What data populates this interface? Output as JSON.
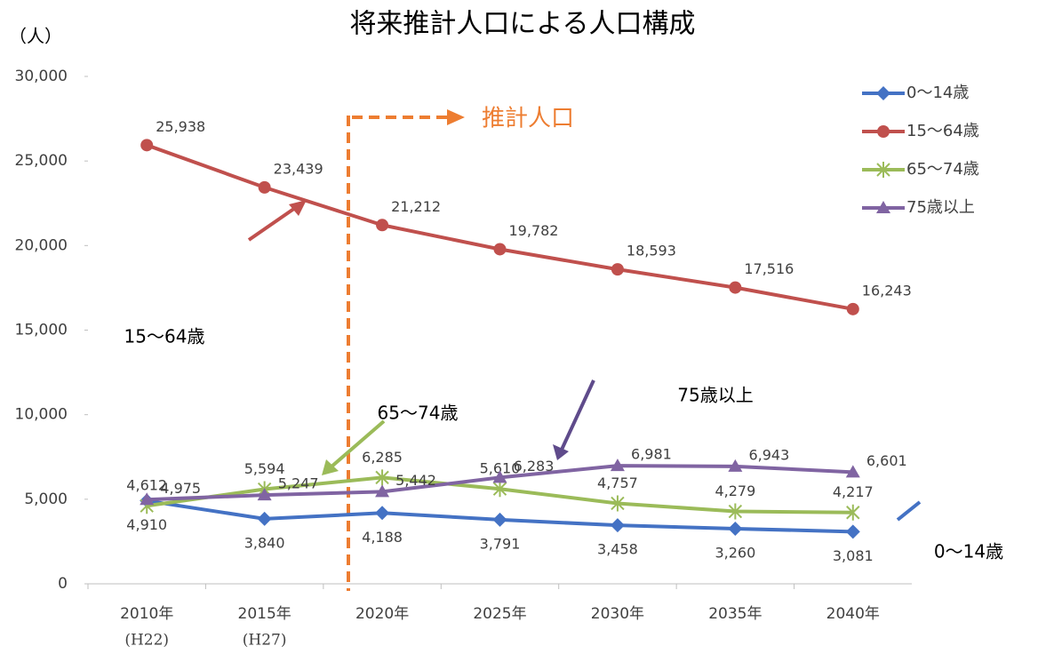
{
  "chart_data": {
    "type": "line",
    "title": "将来推計人口による人口構成",
    "y_label": "（人）",
    "categories": [
      "2010年",
      "2015年",
      "2020年",
      "2025年",
      "2030年",
      "2035年",
      "2040年"
    ],
    "category_sublabels": [
      "(H22)",
      "(H27)",
      null,
      null,
      null,
      null,
      null
    ],
    "ylim": [
      0,
      30000
    ],
    "yticks": [
      0,
      {
        "value": 5000,
        "label": "5,000"
      },
      {
        "value": 10000,
        "label": "10,000"
      },
      {
        "value": 15000,
        "label": "15,000"
      },
      {
        "value": 20000,
        "label": "20,000"
      },
      {
        "value": 25000,
        "label": "25,000"
      },
      {
        "value": 30000,
        "label": "30,000"
      }
    ],
    "legend_position": "upper right",
    "series": [
      {
        "name": "0〜14歳",
        "color": "#4472c4",
        "marker": "diamond",
        "values": [
          4910,
          3840,
          4188,
          3791,
          3458,
          3260,
          3081
        ],
        "value_labels": [
          "4,910",
          "3,840",
          "4,188",
          "3,791",
          "3,458",
          "3,260",
          "3,081"
        ]
      },
      {
        "name": "15〜64歳",
        "color": "#c0504d",
        "marker": "circle",
        "values": [
          25938,
          23439,
          21212,
          19782,
          18593,
          17516,
          16243
        ],
        "value_labels": [
          "25,938",
          "23,439",
          "21,212",
          "19,782",
          "18,593",
          "17,516",
          "16,243"
        ]
      },
      {
        "name": "65〜74歳",
        "color": "#9bbb59",
        "marker": "asterisk",
        "values": [
          4612,
          5594,
          6285,
          5610,
          4757,
          4279,
          4217
        ],
        "value_labels": [
          "4,612",
          "5,594",
          "6,285",
          "5,610",
          "4,757",
          "4,279",
          "4,217"
        ]
      },
      {
        "name": "75歳以上",
        "color": "#8064a2",
        "marker": "triangle",
        "values": [
          4975,
          5247,
          5442,
          6283,
          6981,
          6943,
          6601
        ],
        "value_labels": [
          "4,975",
          "5,247",
          "5,442",
          "6,283",
          "6,981",
          "6,943",
          "6,601"
        ]
      }
    ],
    "annotations": {
      "projection": "推計人口",
      "group_15_64": "15〜64歳",
      "group_65_74": "65〜74歳",
      "group_75": "75歳以上",
      "group_0_14": "0〜14歳"
    }
  }
}
